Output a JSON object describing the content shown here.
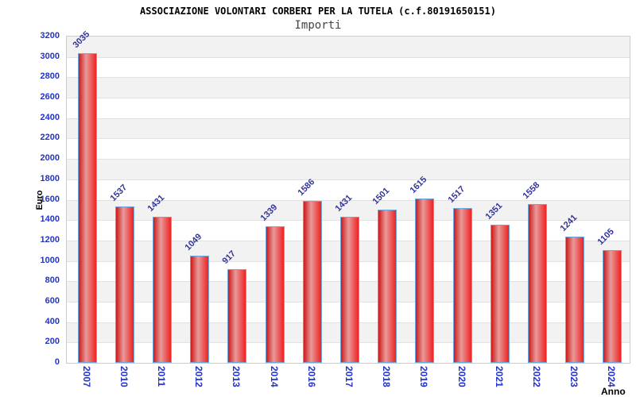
{
  "header": {
    "title": "ASSOCIAZIONE VOLONTARI CORBERI PER LA TUTELA (c.f.80191650151)",
    "subtitle": "Importi"
  },
  "chart_data": {
    "type": "bar",
    "title": "ASSOCIAZIONE VOLONTARI CORBERI PER LA TUTELA (c.f.80191650151)",
    "subtitle": "Importi",
    "xlabel": "Anno",
    "ylabel": "Euro",
    "categories": [
      "2007",
      "2010",
      "2011",
      "2012",
      "2013",
      "2014",
      "2016",
      "2017",
      "2018",
      "2019",
      "2020",
      "2021",
      "2022",
      "2023",
      "2024"
    ],
    "values": [
      3035,
      1537,
      1431,
      1049,
      917,
      1339,
      1586,
      1431,
      1501,
      1615,
      1517,
      1351,
      1558,
      1241,
      1105
    ],
    "ylim": [
      0,
      3200
    ],
    "ytick_step": 200,
    "legend": "none",
    "grid": "horizontal, alternating shaded bands every 200",
    "colors": {
      "bar_fill_edge": "#cc1a1a",
      "bar_fill_center": "#e89a9a",
      "bar_border": "#6fa8dc",
      "axis_tick_text": "#2233cc",
      "value_label_text": "#333399",
      "band_shade": "#f2f2f2",
      "grid_line": "#e2e2e2",
      "plot_border": "#cccccc",
      "title_text": "#000000",
      "subtitle_text": "#444444"
    }
  }
}
